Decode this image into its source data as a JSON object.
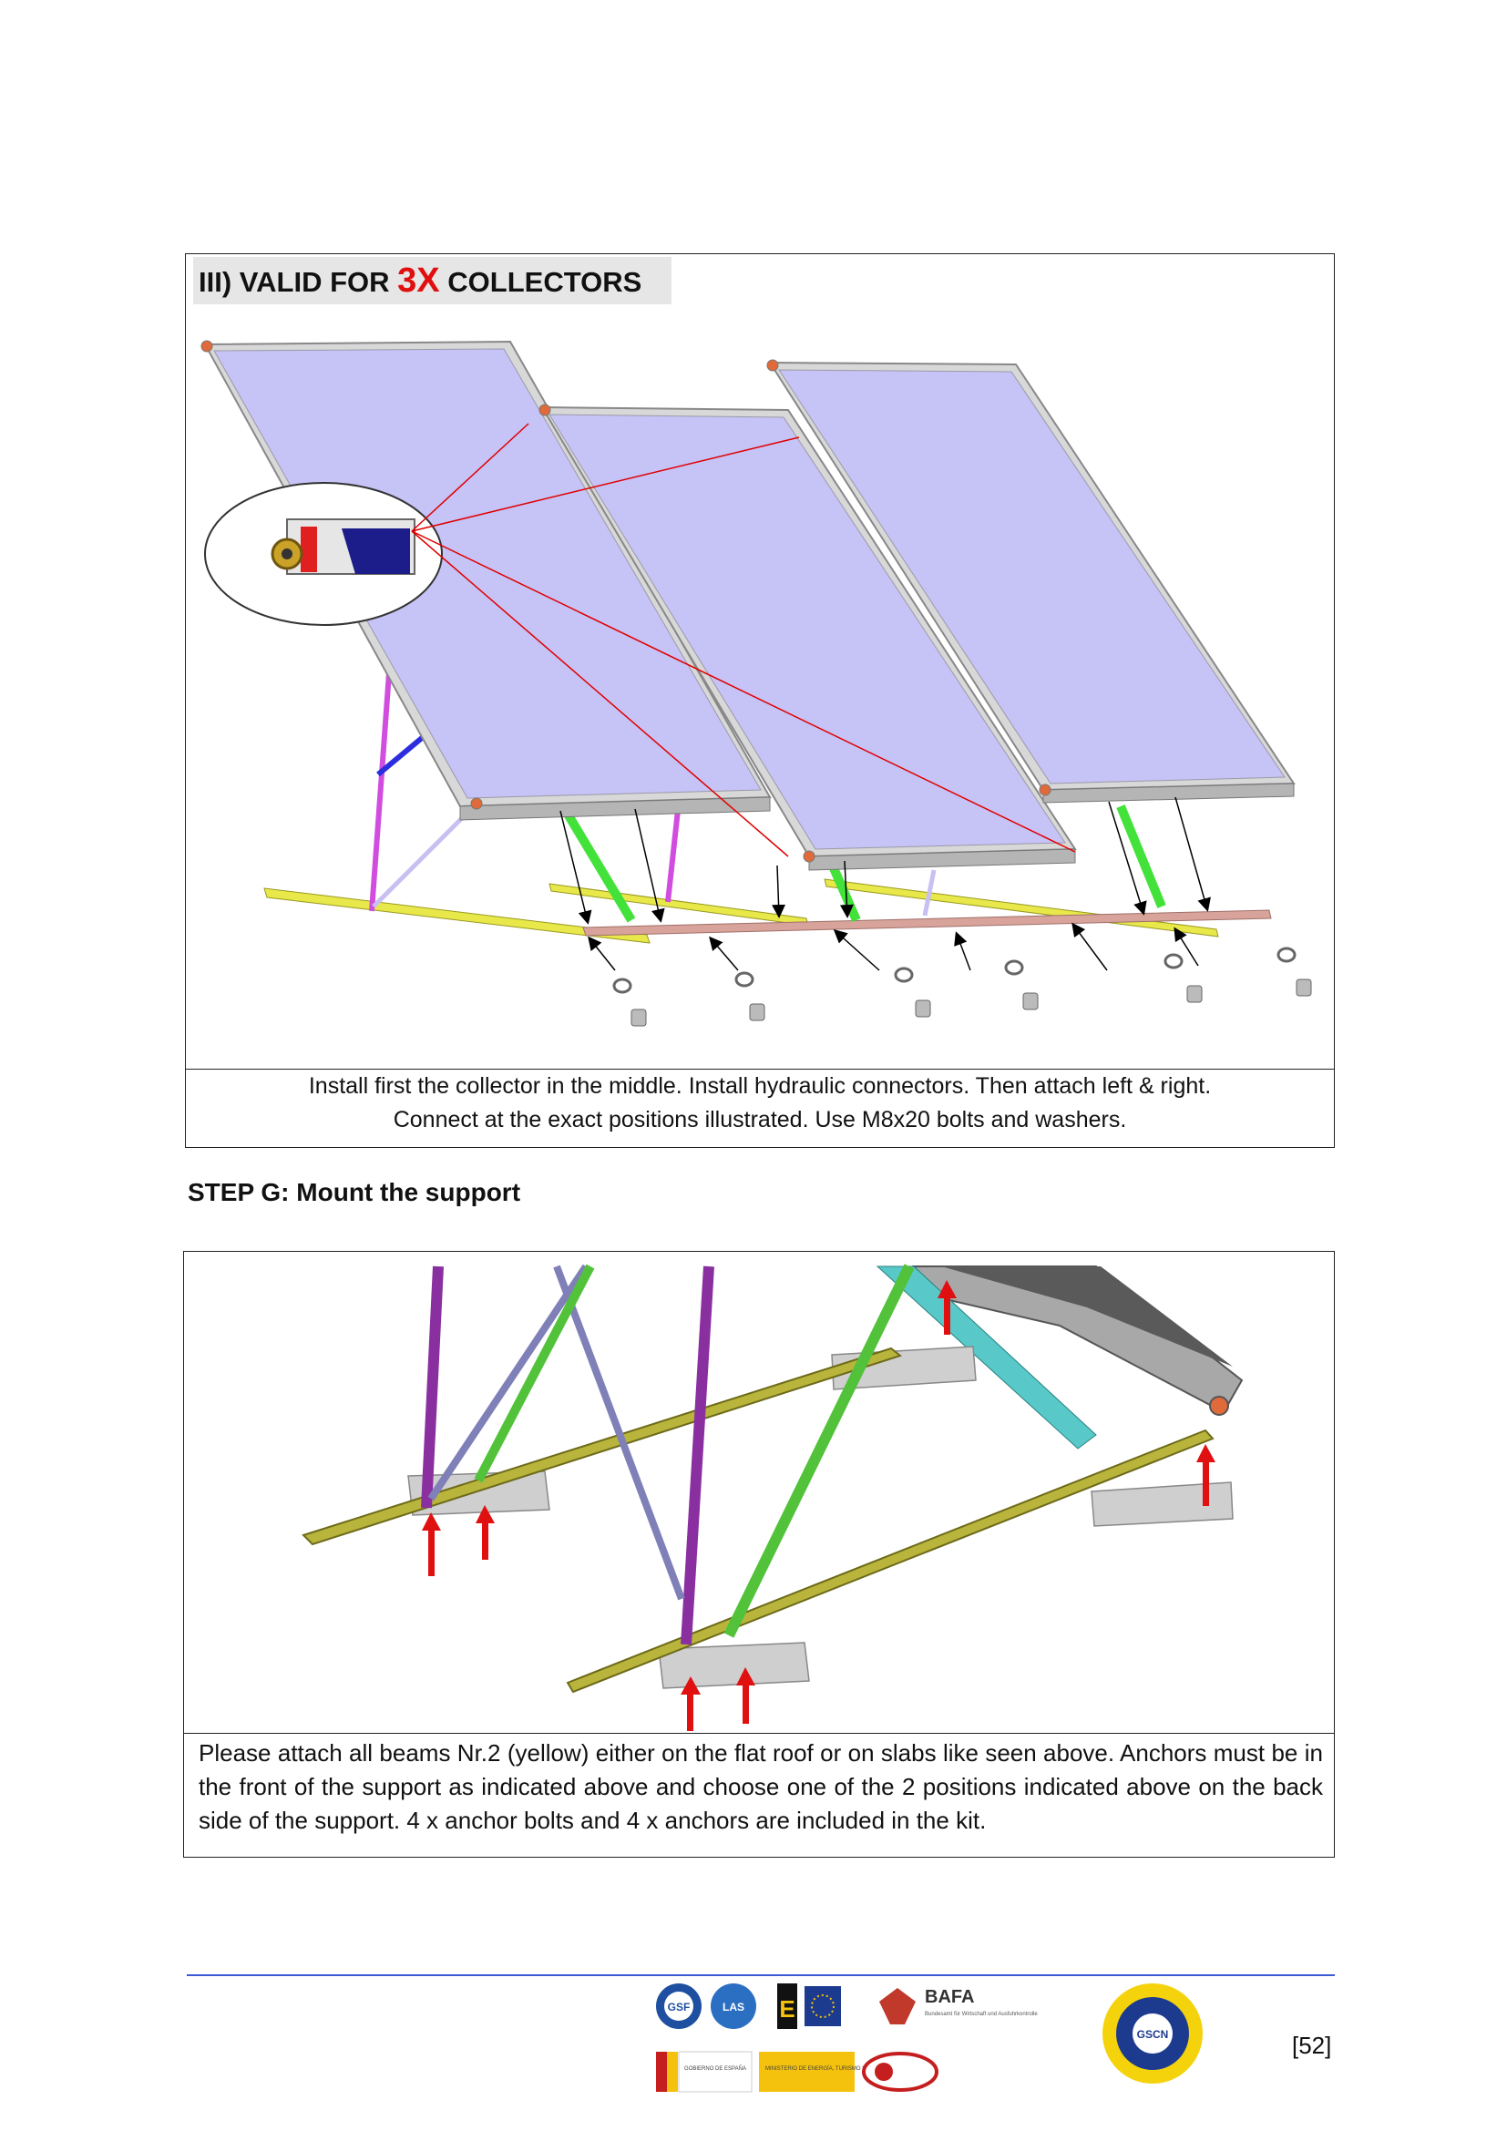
{
  "section": {
    "title_prefix": "III) VALID FOR",
    "title_emphasis": "3X",
    "title_suffix": "COLLECTORS",
    "caption_line1": "Install first the collector in the middle. Install hydraulic connectors. Then attach left & right.",
    "caption_line2": "Connect at the exact positions illustrated. Use M8x20 bolts and washers."
  },
  "step": {
    "heading": "STEP G: Mount the support",
    "description": "Please attach all beams Nr.2 (yellow) either on the flat roof or on slabs like seen above. Anchors must be in the front of the support as indicated above and choose one of the 2 positions indicated above on the back side of the support. 4 x anchor bolts and 4 x anchors are included in the kit."
  },
  "footer": {
    "page_number": "[52]",
    "logos": [
      "GSF",
      "LAS",
      "E",
      "BAFA",
      "GSCN",
      "GOBIERNO DE ESPAÑA",
      "MINISTERIO DE ENERGÍA, TURISMO Y AGENDA DIGITAL",
      "BES"
    ],
    "bafa_name": "BAFA",
    "bafa_subtitle": "Bundesamt für Wirtschaft und Ausfuhrkontrolle",
    "gscn_label": "GSCN",
    "gobierno_label": "GOBIERNO DE ESPAÑA",
    "ministerio_label": "MINISTERIO DE ENERGÍA, TURISMO Y AGENDA DIGITAL"
  },
  "colors": {
    "panel": "#c6c3f6",
    "frame": "#cfcfcf",
    "beam_yellow": "#e8e84a",
    "leg_green": "#42e23a",
    "leg_magenta": "#d14de0",
    "brace_blue": "#2d2de0",
    "pointer_red": "#e00000",
    "footer_rule": "#3b5bd6"
  }
}
